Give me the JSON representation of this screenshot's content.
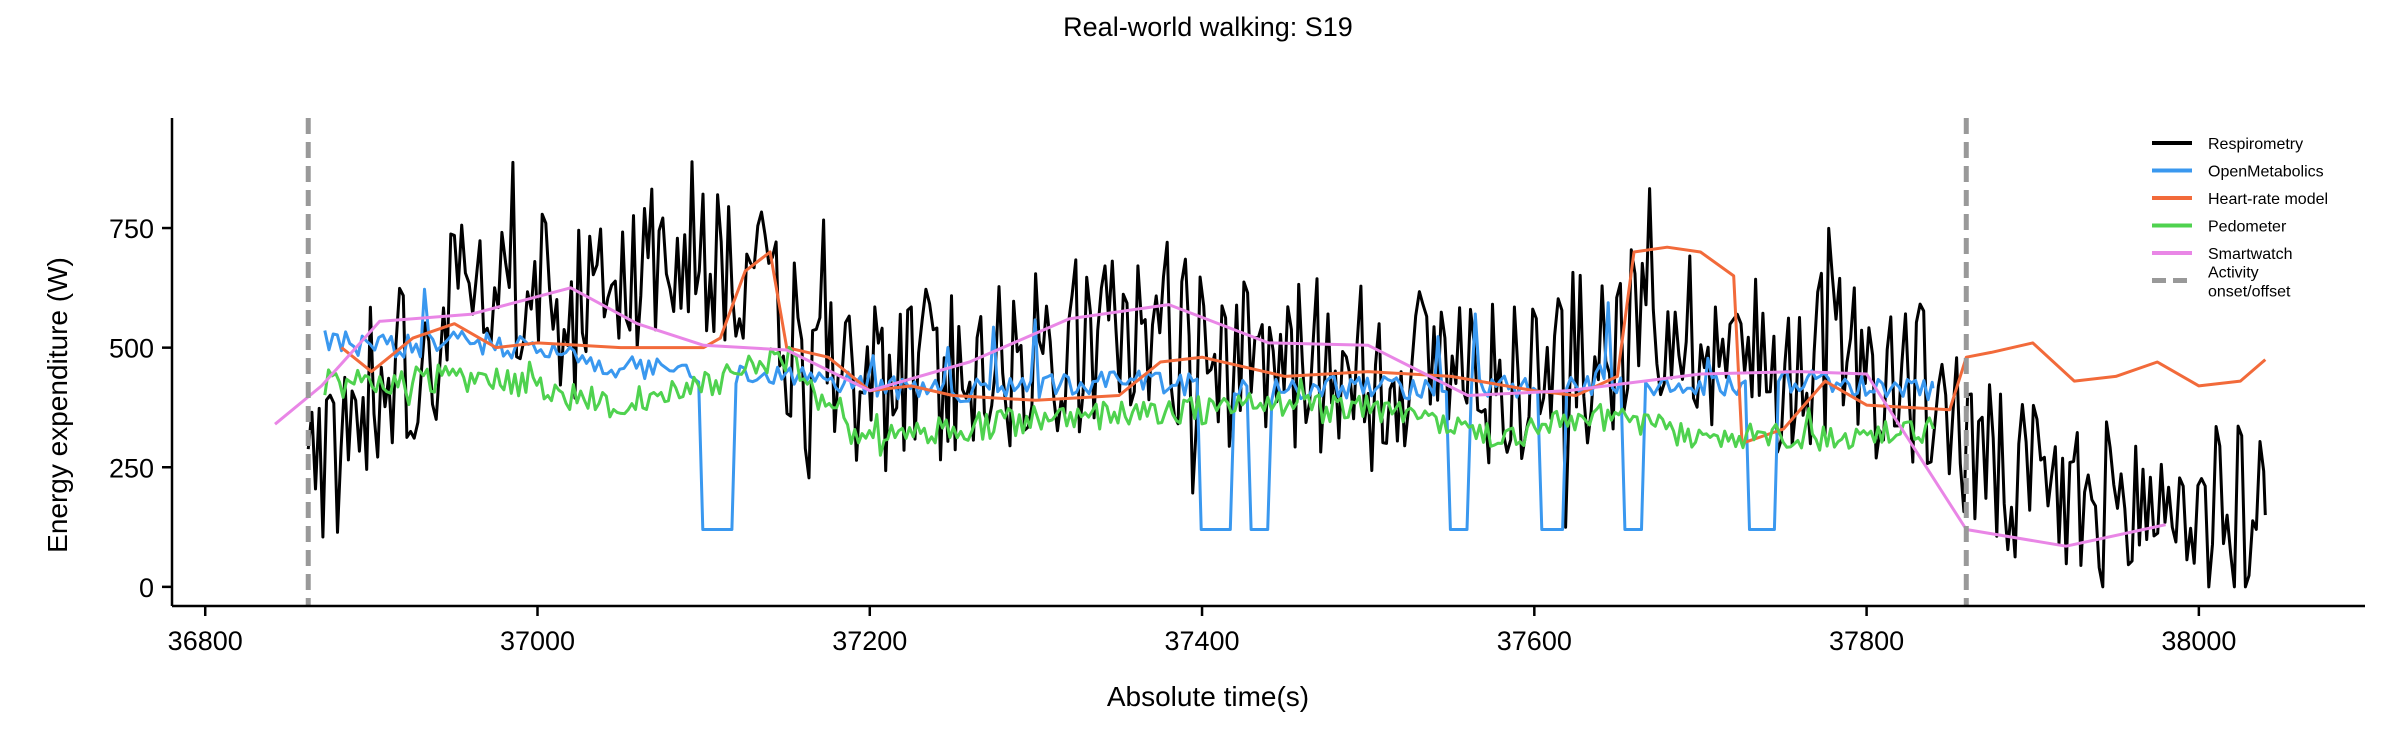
{
  "chart_data": {
    "type": "line",
    "title": "Real-world walking: S19",
    "xlabel": "Absolute time(s)",
    "ylabel": "Energy expenditure (W)",
    "xlim": [
      36780,
      38100
    ],
    "ylim": [
      -40,
      980
    ],
    "xticks": [
      36800,
      37000,
      37200,
      37400,
      37600,
      37800,
      38000
    ],
    "yticks": [
      0,
      250,
      500,
      750
    ],
    "grid": false,
    "legend_position": "top-right",
    "series": [
      {
        "name": "Respirometry",
        "color": "#000000",
        "style": "noisy",
        "seed": 11,
        "amp": 190,
        "x": [
          36862,
          36880,
          36900,
          36925,
          36950,
          36975,
          37000,
          37025,
          37050,
          37075,
          37100,
          37125,
          37150,
          37175,
          37200,
          37225,
          37250,
          37275,
          37300,
          37325,
          37350,
          37375,
          37400,
          37425,
          37450,
          37475,
          37500,
          37525,
          37550,
          37575,
          37600,
          37625,
          37650,
          37675,
          37700,
          37725,
          37750,
          37775,
          37800,
          37825,
          37845,
          37860,
          37880,
          37900,
          37925,
          37950,
          37975,
          38000,
          38025,
          38040
        ],
        "y": [
          230,
          300,
          450,
          480,
          560,
          600,
          620,
          560,
          640,
          700,
          720,
          650,
          520,
          460,
          420,
          430,
          460,
          470,
          480,
          500,
          520,
          540,
          510,
          450,
          470,
          460,
          480,
          450,
          470,
          430,
          450,
          470,
          520,
          560,
          530,
          480,
          450,
          500,
          470,
          420,
          400,
          300,
          220,
          200,
          170,
          160,
          170,
          160,
          150,
          150
        ]
      },
      {
        "name": "OpenMetabolics",
        "color": "#3a98ef",
        "style": "dropout",
        "seed": 23,
        "amp": 25,
        "x": [
          36872,
          36900,
          36950,
          37000,
          37050,
          37100,
          37150,
          37200,
          37250,
          37300,
          37350,
          37400,
          37450,
          37500,
          37550,
          37600,
          37650,
          37700,
          37750,
          37800,
          37840
        ],
        "y": [
          520,
          500,
          510,
          500,
          460,
          450,
          440,
          420,
          410,
          420,
          430,
          420,
          410,
          420,
          410,
          420,
          430,
          420,
          430,
          420,
          415
        ]
      },
      {
        "name": "Heart-rate model",
        "color": "#f26a3a",
        "style": "step",
        "x": [
          36882,
          36900,
          36925,
          36950,
          36975,
          37000,
          37050,
          37100,
          37110,
          37125,
          37140,
          37150,
          37175,
          37200,
          37225,
          37250,
          37300,
          37350,
          37375,
          37400,
          37450,
          37500,
          37550,
          37600,
          37625,
          37650,
          37660,
          37680,
          37700,
          37720,
          37725,
          37750,
          37775,
          37800,
          37850,
          37860,
          37875,
          37900,
          37925,
          37950,
          37975,
          38000,
          38025,
          38040
        ],
        "y": [
          500,
          450,
          520,
          550,
          500,
          510,
          500,
          500,
          520,
          660,
          700,
          500,
          480,
          410,
          420,
          400,
          390,
          400,
          470,
          480,
          440,
          450,
          440,
          410,
          400,
          440,
          700,
          710,
          700,
          650,
          300,
          330,
          430,
          380,
          370,
          480,
          490,
          510,
          430,
          440,
          470,
          420,
          430,
          475
        ]
      },
      {
        "name": "Pedometer",
        "color": "#4fd24f",
        "style": "noisy",
        "seed": 37,
        "amp": 30,
        "x": [
          36872,
          36900,
          36950,
          37000,
          37050,
          37100,
          37150,
          37175,
          37200,
          37250,
          37300,
          37350,
          37400,
          37450,
          37500,
          37550,
          37580,
          37600,
          37650,
          37700,
          37750,
          37800,
          37840
        ],
        "y": [
          430,
          420,
          440,
          420,
          380,
          420,
          480,
          360,
          300,
          330,
          350,
          360,
          370,
          380,
          370,
          340,
          300,
          330,
          360,
          300,
          320,
          310,
          330
        ]
      },
      {
        "name": "Smartwatch",
        "color": "#e986e6",
        "style": "smooth",
        "x": [
          36842,
          36870,
          36905,
          36960,
          37020,
          37060,
          37100,
          37150,
          37200,
          37260,
          37320,
          37380,
          37440,
          37500,
          37560,
          37620,
          37700,
          37760,
          37800,
          37860,
          37920,
          37980
        ],
        "y": [
          340,
          420,
          555,
          570,
          625,
          550,
          505,
          495,
          410,
          470,
          560,
          590,
          510,
          505,
          400,
          410,
          445,
          450,
          445,
          120,
          85,
          130
        ]
      }
    ],
    "vlines": {
      "x": [
        36862,
        37860
      ],
      "color": "#999999",
      "label": "Activity\nonset/offset"
    }
  }
}
